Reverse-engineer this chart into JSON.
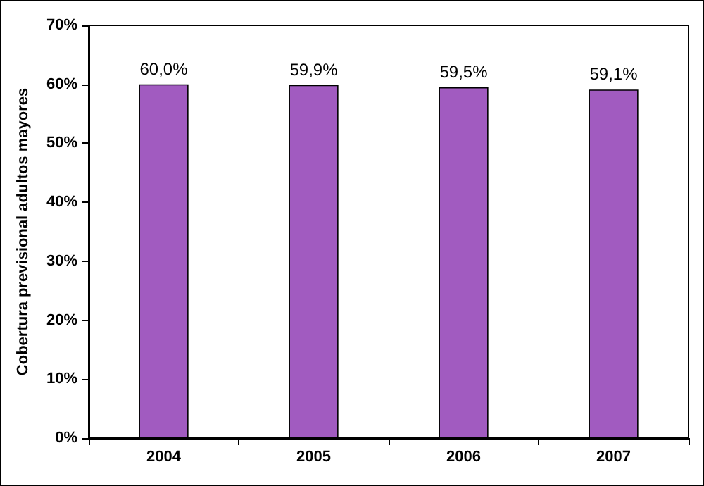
{
  "chart_data": {
    "type": "bar",
    "ylabel": "Cobertura previsional adultos mayores",
    "categories": [
      "2004",
      "2005",
      "2006",
      "2007"
    ],
    "values": [
      60.0,
      59.9,
      59.5,
      59.1
    ],
    "value_labels": [
      "60,0%",
      "59,9%",
      "59,5%",
      "59,1%"
    ],
    "color": "#a15bc0",
    "ylim": [
      0,
      70
    ],
    "yticks": [
      {
        "value": 0,
        "label": "0%"
      },
      {
        "value": 10,
        "label": "10%"
      },
      {
        "value": 20,
        "label": "20%"
      },
      {
        "value": 30,
        "label": "30%"
      },
      {
        "value": 40,
        "label": "40%"
      },
      {
        "value": 50,
        "label": "50%"
      },
      {
        "value": 60,
        "label": "60%"
      },
      {
        "value": 70,
        "label": "70%"
      }
    ],
    "grid": false
  }
}
